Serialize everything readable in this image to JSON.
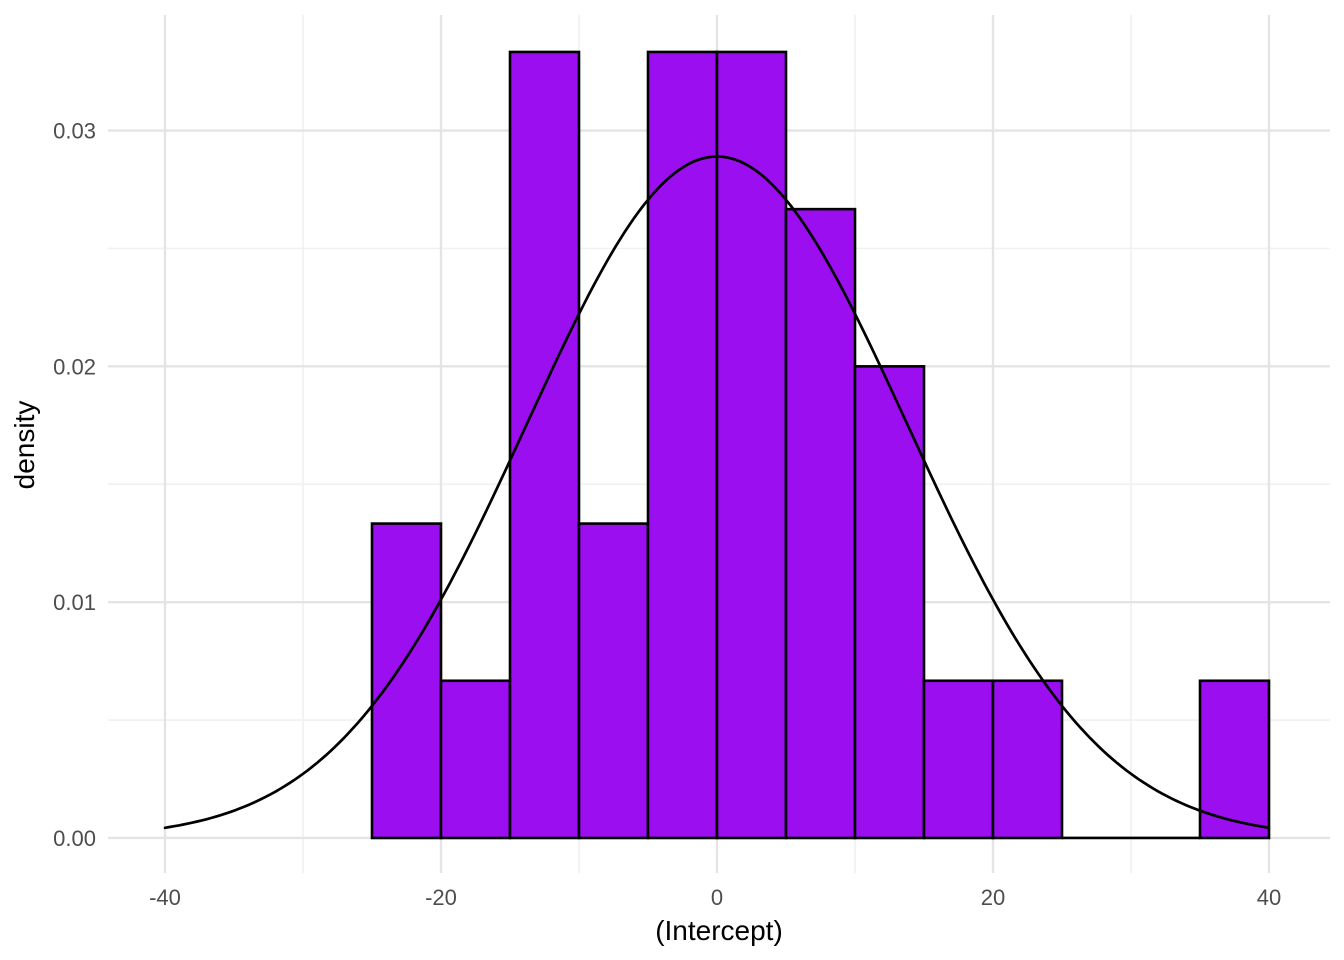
{
  "chart_data": {
    "type": "bar",
    "subtype": "histogram_with_density_curve",
    "title": "",
    "xlabel": "(Intercept)",
    "ylabel": "density",
    "x_axis": {
      "major_tick_values": [
        -40,
        -20,
        0,
        20,
        40
      ],
      "major_tick_labels": [
        "-40",
        "-20",
        "0",
        "20",
        "40"
      ],
      "minor_tick_values": [
        -30,
        -10,
        10,
        30
      ],
      "limits": [
        -44.13,
        44.42
      ]
    },
    "y_axis": {
      "major_tick_values": [
        0,
        0.01,
        0.02,
        0.03
      ],
      "major_tick_labels": [
        "0.00",
        "0.01",
        "0.02",
        "0.03"
      ],
      "minor_tick_values": [
        0.005,
        0.015,
        0.025
      ],
      "limits": [
        -0.001485,
        0.0349
      ]
    },
    "bin_width": 5,
    "bins": [
      {
        "x0": -25,
        "x1": -20,
        "density": 0.013333
      },
      {
        "x0": -20,
        "x1": -15,
        "density": 0.006667
      },
      {
        "x0": -15,
        "x1": -10,
        "density": 0.033333
      },
      {
        "x0": -10,
        "x1": -5,
        "density": 0.013333
      },
      {
        "x0": -5,
        "x1": 0,
        "density": 0.033333
      },
      {
        "x0": 0,
        "x1": 5,
        "density": 0.033333
      },
      {
        "x0": 5,
        "x1": 10,
        "density": 0.026667
      },
      {
        "x0": 10,
        "x1": 15,
        "density": 0.02
      },
      {
        "x0": 15,
        "x1": 20,
        "density": 0.006667
      },
      {
        "x0": 20,
        "x1": 25,
        "density": 0.006667
      },
      {
        "x0": 25,
        "x1": 30,
        "density": 0
      },
      {
        "x0": 30,
        "x1": 35,
        "density": 0
      },
      {
        "x0": 35,
        "x1": 40,
        "density": 0.006667
      }
    ],
    "density_curve": {
      "distribution": "normal",
      "mean": 0,
      "sd": 13.8,
      "peak_density": 0.0289,
      "x_range": [
        -40,
        40
      ]
    },
    "legend": "none",
    "grid": "on",
    "colors": {
      "bar_fill": "#9A0EF0",
      "bar_stroke": "#000000",
      "curve_stroke": "#000000",
      "grid_major": "#E4E4E4",
      "grid_minor": "#F1F1F1",
      "tick_text": "#4D4D4D",
      "axis_title_text": "#000000",
      "background": "#FFFFFF"
    }
  }
}
